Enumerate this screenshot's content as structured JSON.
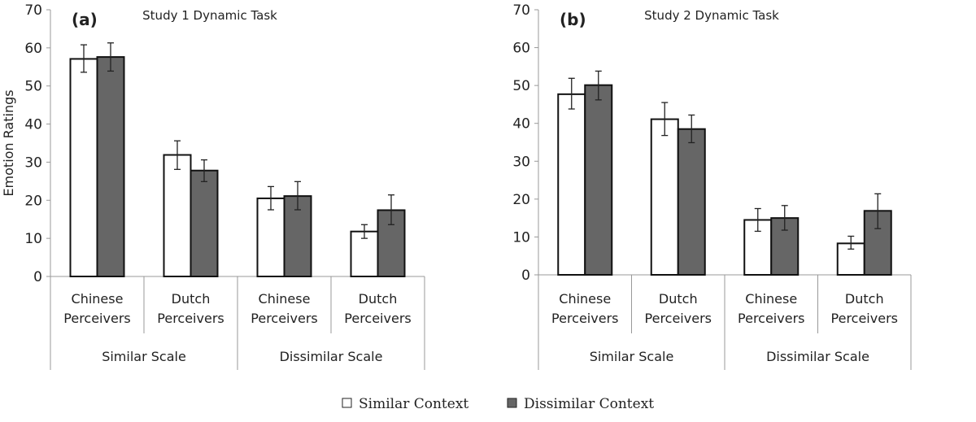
{
  "chart_data": [
    {
      "type": "bar",
      "panel_label": "(a)",
      "title": "Study 1 Dynamic Task",
      "ylabel": "Emotion Ratings",
      "ylim": [
        0,
        70
      ],
      "yticks": [
        0,
        10,
        20,
        30,
        40,
        50,
        60,
        70
      ],
      "categories": [
        "Chinese Perceivers",
        "Dutch Perceivers",
        "Chinese Perceivers",
        "Dutch Perceivers"
      ],
      "groups": [
        {
          "label": "Similar Scale",
          "span": 2
        },
        {
          "label": "Dissimilar Scale",
          "span": 2
        }
      ],
      "series": [
        {
          "name": "Similar Context",
          "values": [
            57.1,
            31.9,
            20.5,
            11.8
          ],
          "err_low": [
            53.6,
            28.1,
            17.5,
            10.0
          ],
          "err_high": [
            60.8,
            35.6,
            23.6,
            13.6
          ]
        },
        {
          "name": "Dissimilar Context",
          "values": [
            57.6,
            27.8,
            21.1,
            17.4
          ],
          "err_low": [
            53.9,
            24.9,
            17.5,
            13.6
          ],
          "err_high": [
            61.3,
            30.6,
            24.9,
            21.4
          ]
        }
      ]
    },
    {
      "type": "bar",
      "panel_label": "(b)",
      "title": "Study 2 Dynamic Task",
      "ylabel": "",
      "ylim": [
        0,
        70
      ],
      "yticks": [
        0,
        10,
        20,
        30,
        40,
        50,
        60,
        70
      ],
      "categories": [
        "Chinese Perceivers",
        "Dutch Perceivers",
        "Chinese Perceivers",
        "Dutch Perceivers"
      ],
      "groups": [
        {
          "label": "Similar Scale",
          "span": 2
        },
        {
          "label": "Dissimilar Scale",
          "span": 2
        }
      ],
      "series": [
        {
          "name": "Similar Context",
          "values": [
            47.7,
            41.1,
            14.5,
            8.3
          ],
          "err_low": [
            43.8,
            36.8,
            11.5,
            6.8
          ],
          "err_high": [
            51.9,
            45.5,
            17.5,
            10.2
          ]
        },
        {
          "name": "Dissimilar Context",
          "values": [
            50.1,
            38.5,
            15.0,
            16.9
          ],
          "err_low": [
            46.2,
            34.9,
            11.8,
            12.2
          ],
          "err_high": [
            53.8,
            42.2,
            18.3,
            21.4
          ]
        }
      ]
    }
  ],
  "legend": {
    "position": "bottom-center",
    "items": [
      {
        "label": "Similar Context",
        "color": "#ffffff"
      },
      {
        "label": "Dissimilar Context",
        "color": "#666666"
      }
    ]
  }
}
